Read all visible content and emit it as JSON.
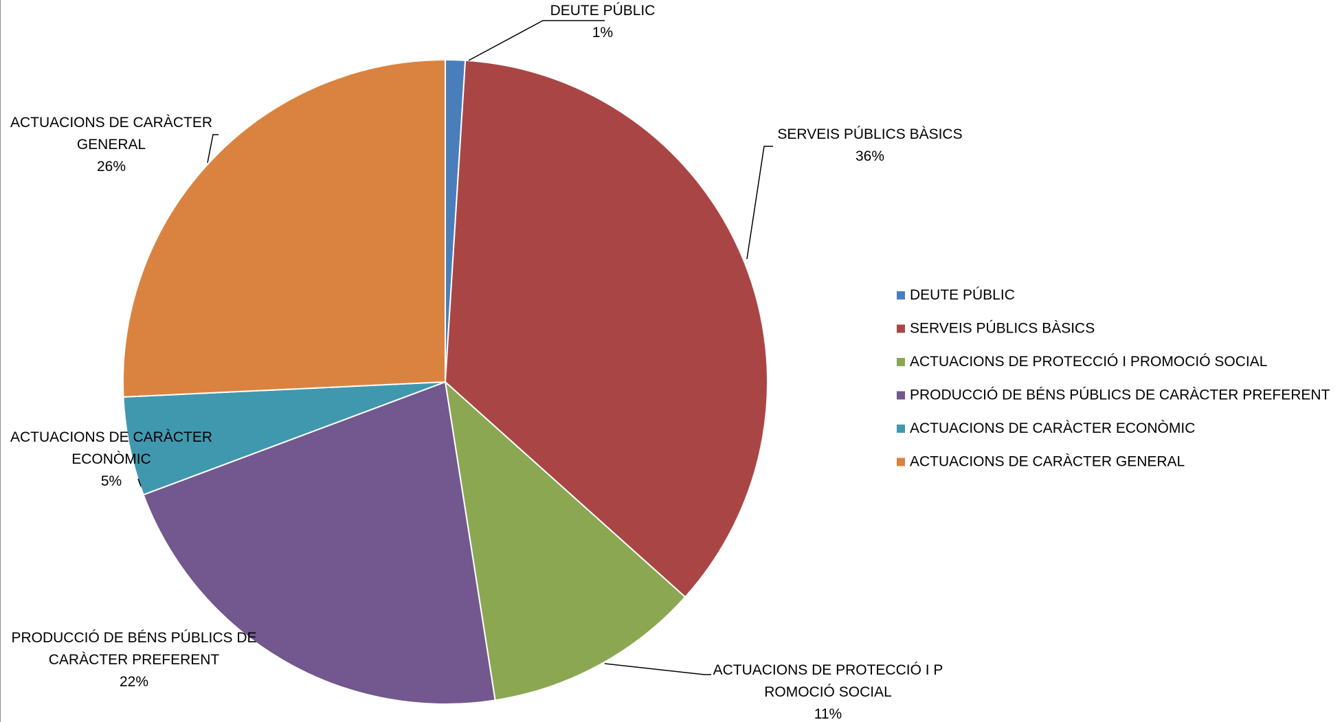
{
  "chart_data": {
    "type": "pie",
    "title": "",
    "legend_position": "right",
    "slices": [
      {
        "label": "DEUTE PÚBLIC",
        "value": 1,
        "percent_label": "1%",
        "color": "#4A7EBB"
      },
      {
        "label": "SERVEIS PÚBLICS BÀSICS",
        "value": 36,
        "percent_label": "36%",
        "color": "#A94645"
      },
      {
        "label": "ACTUACIONS DE PROTECCIÓ I PROMOCIÓ SOCIAL",
        "value": 11,
        "percent_label": "11%",
        "color": "#8BA751"
      },
      {
        "label": "PRODUCCIÓ DE BÉNS PÚBLICS DE CARÀCTER PREFERENT",
        "value": 22,
        "percent_label": "22%",
        "color": "#72588E"
      },
      {
        "label": "ACTUACIONS DE CARÀCTER ECONÒMIC",
        "value": 5,
        "percent_label": "5%",
        "color": "#4098AF"
      },
      {
        "label": "ACTUACIONS DE CARÀCTER GENERAL",
        "value": 26,
        "percent_label": "26%",
        "color": "#DA8340"
      }
    ]
  }
}
